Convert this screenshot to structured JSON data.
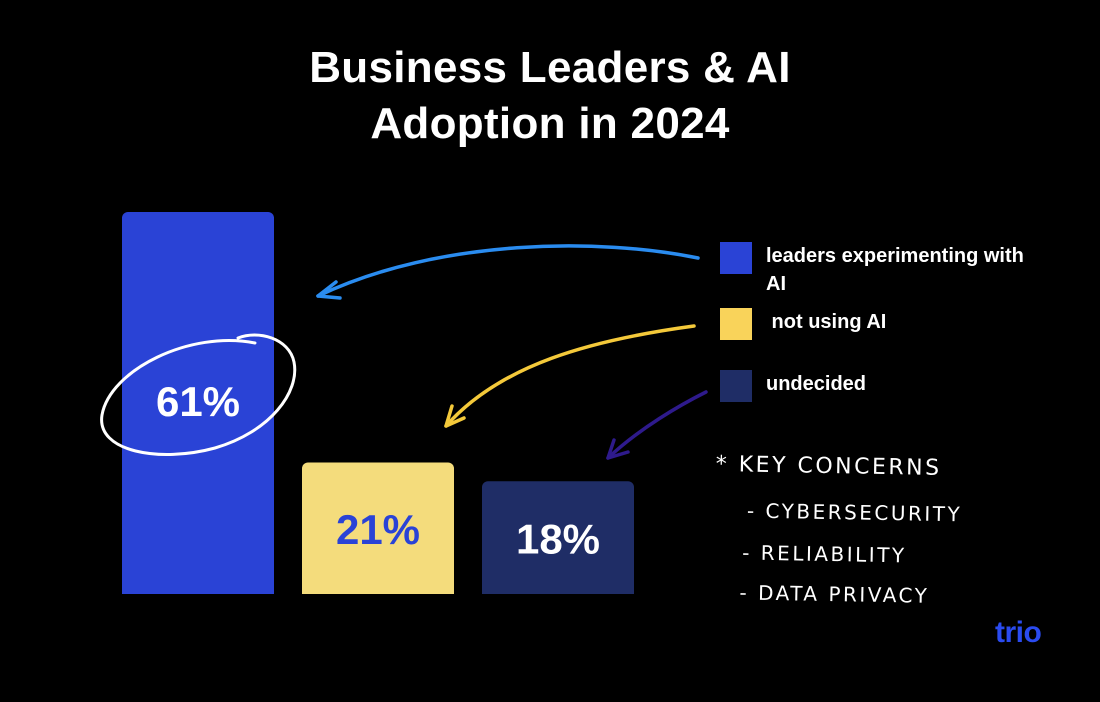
{
  "title_lines": [
    "Business Leaders & AI",
    "Adoption in 2024"
  ],
  "chart_data": {
    "type": "bar",
    "title": "Business Leaders & AI Adoption in 2024",
    "categories": [
      "leaders experimenting with AI",
      "not using AI",
      "undecided"
    ],
    "values": [
      61,
      21,
      18
    ],
    "data_labels": [
      "61%",
      "21%",
      "18%"
    ],
    "colors": [
      "#2a43d6",
      "#f4dc7c",
      "#1f2d66"
    ],
    "label_colors": [
      "#ffffff",
      "#2a43d6",
      "#ffffff"
    ],
    "ylim": [
      0,
      61
    ],
    "legend_position": "right"
  },
  "legend": [
    {
      "label": "leaders experimenting with AI",
      "color": "#2a43d6"
    },
    {
      "label": " not using AI",
      "color": "#f9d35a"
    },
    {
      "label": "undecided",
      "color": "#1f2d66"
    }
  ],
  "arrow_colors": [
    "#2a8cf0",
    "#f4c93a",
    "#2e1a8c"
  ],
  "notes": {
    "heading": "* KEY CONCERNS",
    "items": [
      "- CYBERSECURITY",
      "- RELIABILITY",
      "- DATA PRIVACY"
    ]
  },
  "logo": "trio",
  "logo_color": "#2a4bf0"
}
